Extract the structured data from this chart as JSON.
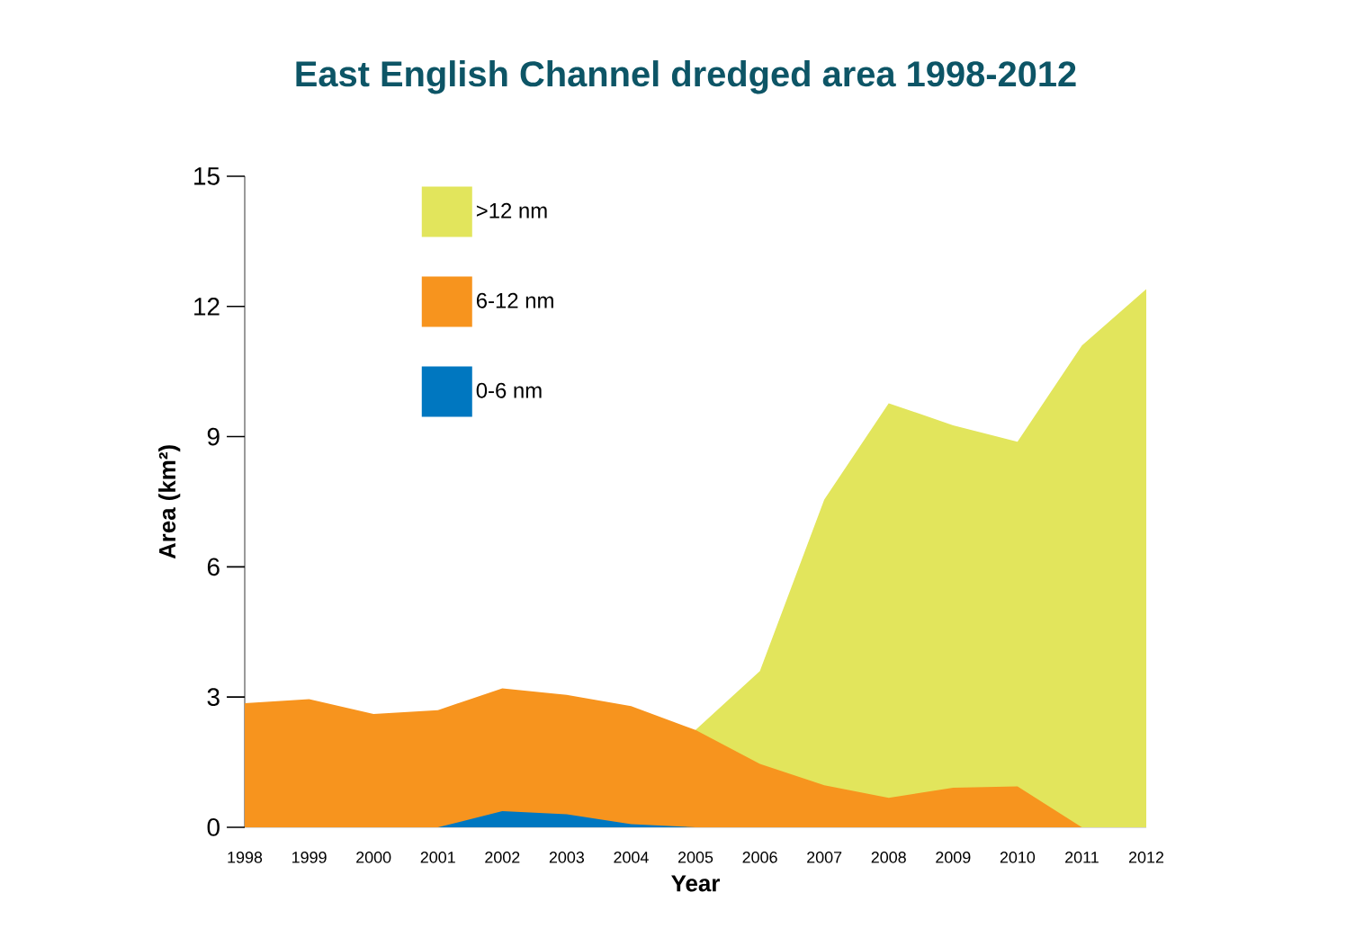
{
  "chart_data": {
    "type": "area",
    "title": "East English Channel dredged area 1998-2012",
    "xlabel": "Year",
    "ylabel": "Area (km²)",
    "x": [
      1998,
      1999,
      2000,
      2001,
      2002,
      2003,
      2004,
      2005,
      2006,
      2007,
      2008,
      2009,
      2010,
      2011,
      2012
    ],
    "xlim": [
      1998,
      2012
    ],
    "xticks": [
      1998,
      1999,
      2000,
      2001,
      2002,
      2003,
      2004,
      2005,
      2006,
      2007,
      2008,
      2009,
      2010,
      2011,
      2012
    ],
    "ylim": [
      0,
      15
    ],
    "yticks": [
      0,
      3,
      6,
      9,
      12,
      15
    ],
    "legend": "top left",
    "series": [
      {
        "name": ">12 nm",
        "color": "#e2e55c",
        "values": [
          null,
          null,
          null,
          null,
          null,
          null,
          null,
          2.24,
          3.6,
          7.55,
          9.77,
          9.26,
          8.88,
          11.1,
          12.4
        ]
      },
      {
        "name": "6-12 nm",
        "color": "#f7941e",
        "values": [
          2.86,
          2.95,
          2.61,
          2.7,
          3.2,
          3.05,
          2.79,
          2.24,
          1.46,
          0.97,
          0.68,
          0.91,
          0.94,
          0,
          0
        ]
      },
      {
        "name": "0-6 nm",
        "color": "#0077c0",
        "values": [
          0,
          0,
          0,
          0,
          0.37,
          0.3,
          0.07,
          0,
          0,
          0,
          0,
          0,
          0,
          0,
          0
        ]
      }
    ]
  }
}
